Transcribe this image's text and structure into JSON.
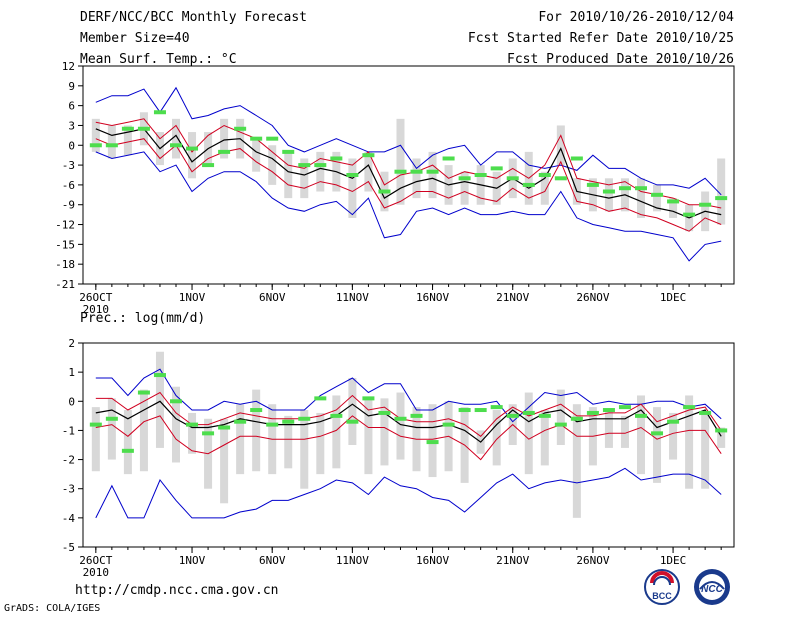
{
  "header": {
    "title": "DERF/NCC/BCC Monthly Forecast",
    "member_size": "Member Size=40",
    "variable_top": "Mean Surf. Temp.: °C",
    "period": "For 2010/10/26-2010/12/04",
    "started": "Fcst Started Refer Date 2010/10/25",
    "produced": "Fcst Produced Date 2010/10/26"
  },
  "footer": {
    "url": "http://cmdp.ncc.cma.gov.cn",
    "grads": "GrADS: COLA/IGES",
    "logo_left": "BCC",
    "logo_right": "NCC"
  },
  "colors": {
    "mean": "#000000",
    "spread": "#d00020",
    "envelope": "#0000cc",
    "obs": "#4ddd4d",
    "bar": "#d8d8d8"
  },
  "chart_data": [
    {
      "type": "line",
      "title": "Mean Surf. Temp.: °C",
      "xlabel": "",
      "ylabel": "",
      "ylim": [
        -21,
        12
      ],
      "yticks": [
        "12",
        "9",
        "6",
        "3",
        "0",
        "-3",
        "-6",
        "-9",
        "-12",
        "-15",
        "-18",
        "-21"
      ],
      "xticks": [
        {
          "day": 0,
          "label": "26OCT",
          "sub": "2010"
        },
        {
          "day": 6,
          "label": "1NOV"
        },
        {
          "day": 11,
          "label": "6NOV"
        },
        {
          "day": 16,
          "label": "11NOV"
        },
        {
          "day": 21,
          "label": "16NOV"
        },
        {
          "day": 26,
          "label": "21NOV"
        },
        {
          "day": 31,
          "label": "26NOV"
        },
        {
          "day": 36,
          "label": "1DEC"
        }
      ],
      "days": 40,
      "series": [
        {
          "name": "ensemble max",
          "values": [
            6.5,
            7.5,
            7.5,
            8.5,
            5,
            8.7,
            4,
            4.5,
            5.5,
            6,
            4.5,
            3,
            0,
            -1,
            0,
            1,
            0,
            -1,
            -1,
            0,
            -3.5,
            -1.5,
            -0.5,
            0,
            -3,
            -1,
            -1,
            -3,
            -3.5,
            -3,
            -3.8,
            -1.5,
            -3.5,
            -3.5,
            -5,
            -6,
            -6,
            -6.5,
            -5,
            -7.5
          ]
        },
        {
          "name": "upper spread",
          "values": [
            3.5,
            3,
            3.5,
            4,
            1,
            3,
            -1,
            1.5,
            3,
            2,
            1,
            -1,
            -3,
            -3.5,
            -2,
            -2.5,
            -3,
            -1,
            -6,
            -4.5,
            -4,
            -3,
            -5,
            -4,
            -4.5,
            -5,
            -3.5,
            -5,
            -3,
            1.5,
            -5,
            -5.5,
            -6,
            -5.5,
            -7,
            -7.5,
            -8,
            -9,
            -9,
            -9.5
          ]
        },
        {
          "name": "ensemble mean",
          "values": [
            2.5,
            1.5,
            2,
            2.5,
            -0.5,
            1.5,
            -2.5,
            -0.5,
            0.8,
            1,
            -1,
            -2,
            -4,
            -4.5,
            -3.5,
            -4,
            -5,
            -3,
            -8,
            -6.5,
            -5.5,
            -5,
            -6,
            -5.5,
            -6,
            -6.5,
            -5,
            -6.5,
            -5,
            -0.5,
            -7,
            -7.5,
            -8,
            -7.5,
            -8.5,
            -9.5,
            -10,
            -11,
            -10,
            -10.5
          ]
        },
        {
          "name": "lower spread",
          "values": [
            1,
            0,
            0.5,
            1,
            -2,
            0,
            -4,
            -2,
            -1,
            -0.5,
            -2.5,
            -4,
            -6,
            -6.5,
            -5.5,
            -6,
            -7,
            -5.5,
            -9.5,
            -8.5,
            -7,
            -7,
            -8,
            -7,
            -8,
            -8.5,
            -6.5,
            -8,
            -7,
            -2.5,
            -8.5,
            -9,
            -10,
            -9.5,
            -10.5,
            -11,
            -12,
            -13,
            -11,
            -12
          ]
        },
        {
          "name": "ensemble min",
          "values": [
            -1,
            -2,
            -1.5,
            -1,
            -4,
            -3,
            -7,
            -5,
            -4,
            -4,
            -5.5,
            -8,
            -9.5,
            -10,
            -9,
            -8.5,
            -10.5,
            -8,
            -14,
            -13.5,
            -10,
            -9.5,
            -10.5,
            -9.5,
            -10.5,
            -10.5,
            -10,
            -10.5,
            -10.5,
            -7,
            -11,
            -12,
            -12.5,
            -13,
            -13,
            -13.5,
            -14,
            -17.5,
            -15,
            -14.5
          ]
        }
      ],
      "bars": [
        [
          -1,
          4
        ],
        [
          -2,
          3
        ],
        [
          -1.5,
          3
        ],
        [
          0,
          5
        ],
        [
          -3,
          2
        ],
        [
          -2,
          4
        ],
        [
          -5,
          2
        ],
        [
          -3,
          2
        ],
        [
          -2,
          4
        ],
        [
          -2,
          4
        ],
        [
          -4,
          1
        ],
        [
          -6,
          0
        ],
        [
          -8,
          -1
        ],
        [
          -8,
          -2
        ],
        [
          -7,
          -1
        ],
        [
          -7,
          -1
        ],
        [
          -11,
          -2
        ],
        [
          -7,
          -1
        ],
        [
          -10,
          -4
        ],
        [
          -9,
          4
        ],
        [
          -8,
          -2
        ],
        [
          -8,
          -1
        ],
        [
          -9,
          -3
        ],
        [
          -9,
          -4
        ],
        [
          -9,
          -3
        ],
        [
          -9,
          -4
        ],
        [
          -8,
          -2
        ],
        [
          -9,
          -1
        ],
        [
          -9,
          -4
        ],
        [
          -3,
          3
        ],
        [
          -9,
          -5
        ],
        [
          -10,
          -5
        ],
        [
          -10,
          -5
        ],
        [
          -10,
          -5
        ],
        [
          -11,
          -5
        ],
        [
          -10,
          -6
        ],
        [
          -11,
          -8
        ],
        [
          -13,
          -9
        ],
        [
          -13,
          -7
        ],
        [
          -12,
          -2
        ]
      ],
      "observed": [
        0,
        0,
        2.5,
        2.5,
        5,
        0,
        -0.5,
        -3,
        -1,
        2.5,
        1,
        1,
        -1,
        -3,
        -3,
        -2,
        -4.5,
        -1.5,
        -7,
        -4,
        -4,
        -4,
        -2,
        -5,
        -4.5,
        -3.5,
        -5,
        -6,
        -4.5,
        -5,
        -2,
        -6,
        -7,
        -6.5,
        -6.5,
        -7.5,
        -8.5,
        -10.5,
        -9,
        -8
      ]
    },
    {
      "type": "line",
      "title": "Prec.: log(mm/d)",
      "xlabel": "",
      "ylabel": "",
      "ylim": [
        -5,
        2
      ],
      "yticks": [
        "2",
        "1",
        "0",
        "-1",
        "-2",
        "-3",
        "-4",
        "-5"
      ],
      "xticks": [
        {
          "day": 0,
          "label": "26OCT",
          "sub": "2010"
        },
        {
          "day": 6,
          "label": "1NOV"
        },
        {
          "day": 11,
          "label": "6NOV"
        },
        {
          "day": 16,
          "label": "11NOV"
        },
        {
          "day": 21,
          "label": "16NOV"
        },
        {
          "day": 26,
          "label": "21NOV"
        },
        {
          "day": 31,
          "label": "26NOV"
        },
        {
          "day": 36,
          "label": "1DEC"
        }
      ],
      "days": 40,
      "series": [
        {
          "name": "ensemble max",
          "values": [
            0.8,
            0.8,
            0.2,
            0.8,
            1.1,
            0.2,
            -0.3,
            -0.3,
            0,
            -0.1,
            0,
            -0.3,
            -0.3,
            -0.3,
            0.2,
            0.5,
            0.8,
            0.3,
            0.6,
            0.6,
            -0.3,
            -0.3,
            0,
            -0.1,
            -0.1,
            0,
            -0.7,
            -0.2,
            0.3,
            0.2,
            0.3,
            -0.1,
            0,
            -0.1,
            -0.1,
            0,
            0,
            -0.2,
            -0.1,
            -0.6
          ]
        },
        {
          "name": "upper spread",
          "values": [
            0.1,
            0.1,
            -0.3,
            0,
            0.3,
            -0.4,
            -0.8,
            -0.8,
            -0.6,
            -0.4,
            -0.5,
            -0.6,
            -0.6,
            -0.6,
            -0.5,
            -0.3,
            0.2,
            -0.3,
            -0.2,
            -0.6,
            -0.7,
            -0.7,
            -0.6,
            -0.8,
            -1.2,
            -0.6,
            -0.2,
            -0.5,
            -0.3,
            -0.1,
            -0.5,
            -0.5,
            -0.4,
            -0.4,
            -0.1,
            -0.7,
            -0.5,
            -0.3,
            -0.2,
            -1
          ]
        },
        {
          "name": "ensemble mean",
          "values": [
            -0.4,
            -0.3,
            -0.6,
            -0.3,
            0,
            -0.6,
            -0.9,
            -0.9,
            -0.8,
            -0.6,
            -0.7,
            -0.8,
            -0.8,
            -0.8,
            -0.7,
            -0.5,
            -0.1,
            -0.5,
            -0.4,
            -0.8,
            -0.9,
            -0.9,
            -0.8,
            -1,
            -1.4,
            -0.8,
            -0.3,
            -0.7,
            -0.4,
            -0.3,
            -0.7,
            -0.6,
            -0.6,
            -0.6,
            -0.3,
            -0.9,
            -0.7,
            -0.5,
            -0.3,
            -1.2
          ]
        },
        {
          "name": "lower spread",
          "values": [
            -0.9,
            -0.8,
            -1.2,
            -0.7,
            -0.5,
            -1.3,
            -1.7,
            -1.8,
            -1.5,
            -1.2,
            -1.2,
            -1.3,
            -1.3,
            -1.3,
            -1.2,
            -1,
            -0.5,
            -0.9,
            -0.9,
            -1.2,
            -1.3,
            -1.3,
            -1.2,
            -1.5,
            -2,
            -1.3,
            -0.8,
            -1.3,
            -1,
            -0.8,
            -1.2,
            -1.2,
            -1.1,
            -1.1,
            -0.9,
            -1.3,
            -1.1,
            -1,
            -1,
            -1.8
          ]
        },
        {
          "name": "ensemble min",
          "values": [
            -4,
            -2.9,
            -4,
            -4,
            -2.7,
            -3.4,
            -4,
            -4,
            -4,
            -3.8,
            -3.7,
            -3.4,
            -3.4,
            -3.2,
            -3,
            -2.7,
            -2.8,
            -3.2,
            -2.6,
            -2.9,
            -3,
            -3.3,
            -3.4,
            -3.8,
            -3.3,
            -2.8,
            -2.5,
            -3,
            -2.8,
            -2.7,
            -2.8,
            -2.7,
            -2.6,
            -2.3,
            -2.7,
            -2.6,
            -2.5,
            -2.5,
            -2.7,
            -3.2
          ]
        }
      ],
      "bars": [
        [
          -2.4,
          -0.2
        ],
        [
          -2,
          0.1
        ],
        [
          -2.5,
          -0.3
        ],
        [
          -2.4,
          0.4
        ],
        [
          -1.6,
          1.7
        ],
        [
          -2.1,
          0.5
        ],
        [
          -1.8,
          -0.4
        ],
        [
          -3,
          -0.6
        ],
        [
          -3.5,
          -0.6
        ],
        [
          -2.5,
          -0.1
        ],
        [
          -2.4,
          0.4
        ],
        [
          -2.5,
          -0.1
        ],
        [
          -2.3,
          -0.5
        ],
        [
          -3,
          -0.3
        ],
        [
          -2.5,
          -0.4
        ],
        [
          -2.3,
          0.2
        ],
        [
          -1.5,
          0.8
        ],
        [
          -2.5,
          0.1
        ],
        [
          -2.2,
          0.1
        ],
        [
          -2,
          0.3
        ],
        [
          -2.4,
          -0.2
        ],
        [
          -2.6,
          -0.1
        ],
        [
          -2.4,
          0
        ],
        [
          -2.8,
          -0.2
        ],
        [
          -1.8,
          -1
        ],
        [
          -2.2,
          -0.3
        ],
        [
          -1.5,
          -0.1
        ],
        [
          -2.5,
          0.3
        ],
        [
          -2.2,
          -0.3
        ],
        [
          -1.5,
          0.4
        ],
        [
          -4,
          -0.1
        ],
        [
          -2.2,
          -0.2
        ],
        [
          -1.6,
          -0.3
        ],
        [
          -1.6,
          -0.5
        ],
        [
          -2.5,
          0.2
        ],
        [
          -2.8,
          -0.2
        ],
        [
          -2,
          -0.4
        ],
        [
          -3,
          0.2
        ],
        [
          -3,
          -0.4
        ],
        [
          -1.6,
          -0.9
        ]
      ],
      "observed": [
        -0.8,
        -0.6,
        -1.7,
        0.3,
        0.9,
        0,
        -0.8,
        -1.1,
        -0.9,
        -0.7,
        -0.3,
        -0.8,
        -0.7,
        -0.6,
        0.1,
        -0.5,
        -0.7,
        0.1,
        -0.4,
        -0.6,
        -0.5,
        -1.4,
        -0.8,
        -0.3,
        -0.3,
        -0.2,
        -0.5,
        -0.4,
        -0.5,
        -0.8,
        -0.6,
        -0.4,
        -0.3,
        -0.2,
        -0.5,
        -1.1,
        -0.7,
        -0.2,
        -0.4,
        -1
      ]
    }
  ]
}
